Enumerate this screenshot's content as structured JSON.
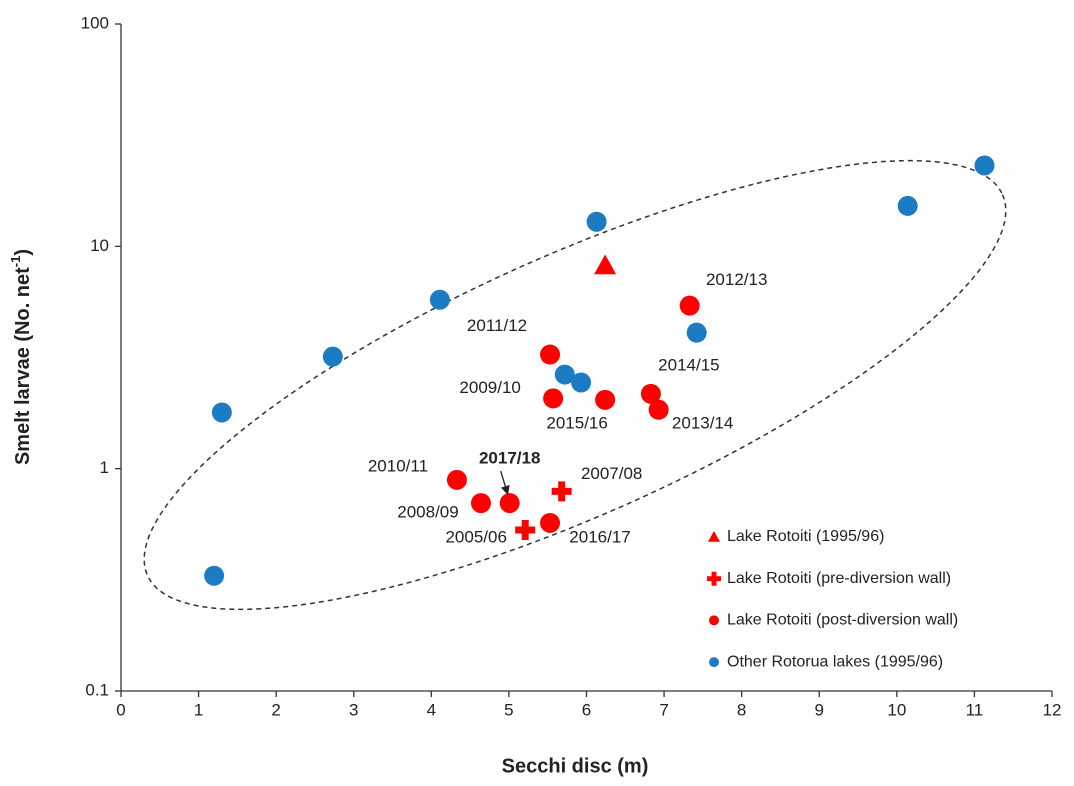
{
  "chart_data": {
    "type": "scatter",
    "xlabel": "Secchi disc (m)",
    "ylabel": [
      "Smelt larvae (No. net",
      "-1",
      ")"
    ],
    "xlim": [
      0,
      12
    ],
    "xticks": [
      0,
      1,
      2,
      3,
      4,
      5,
      6,
      7,
      8,
      9,
      10,
      11,
      12
    ],
    "ylim": [
      0.1,
      100
    ],
    "yticks": [
      0.1,
      1,
      10,
      100
    ],
    "ylog": true,
    "series": [
      {
        "name": "Lake Rotoiti (1995/96)",
        "color": "#ff0000",
        "marker": "triangle",
        "x": [
          6.24
        ],
        "values": [
          8.2
        ]
      },
      {
        "name": "Lake Rotoiti (pre-diversion wall)",
        "color": "#ff0000",
        "marker": "cross",
        "x": [
          5.68,
          5.21
        ],
        "values": [
          0.79,
          0.53
        ],
        "labels": [
          "2007/08",
          "2005/06"
        ]
      },
      {
        "name": "Lake Rotoiti (post-diversion wall)",
        "color": "#ff0000",
        "marker": "circle",
        "x": [
          7.33,
          5.53,
          5.57,
          6.24,
          6.83,
          6.93,
          4.33,
          4.64,
          5.01,
          5.53
        ],
        "values": [
          5.41,
          3.26,
          2.07,
          2.04,
          2.17,
          1.84,
          0.89,
          0.7,
          0.7,
          0.57
        ],
        "labels": [
          "2012/13",
          "2011/12",
          "2009/10",
          "2015/16",
          "2014/15",
          "2013/14",
          "2010/11",
          "2008/09",
          "2017/18",
          "2016/17"
        ]
      },
      {
        "name": "Other Rotorua lakes (1995/96)",
        "color": "#1b7cc4",
        "marker": "circle",
        "x": [
          1.3,
          1.2,
          2.73,
          4.11,
          5.72,
          5.93,
          6.13,
          7.42,
          10.14,
          11.13
        ],
        "values": [
          1.79,
          0.33,
          3.19,
          5.75,
          2.65,
          2.44,
          12.9,
          4.09,
          15.2,
          23.1
        ]
      }
    ]
  }
}
